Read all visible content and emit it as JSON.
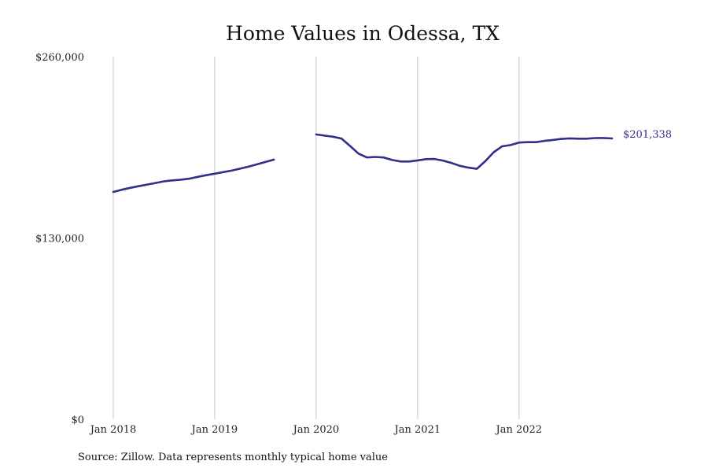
{
  "chart_data": {
    "type": "line",
    "title": "Home Values in Odessa, TX",
    "xlabel": "",
    "ylabel": "",
    "source": "Source: Zillow. Data represents monthly typical home value",
    "y_ticks": [
      "$0",
      "$130,000",
      "$260,000"
    ],
    "y_tick_values": [
      0,
      130000,
      260000
    ],
    "ylim": [
      0,
      260000
    ],
    "x_ticks": [
      "Jan 2018",
      "Jan 2019",
      "Jan 2020",
      "Jan 2021",
      "Jan 2022"
    ],
    "x_tick_dates": [
      "2018-01",
      "2019-01",
      "2020-01",
      "2021-01",
      "2022-01"
    ],
    "xlim": [
      "2018-01",
      "2022-12"
    ],
    "grid": "vertical lines at x ticks",
    "colors": {
      "line": "#302f8a",
      "grid": "#c8c8c8"
    },
    "series": [
      {
        "segments": [
          {
            "dates": [
              "2018-01",
              "2018-02",
              "2018-03",
              "2018-04",
              "2018-05",
              "2018-06",
              "2018-07",
              "2018-08",
              "2018-09",
              "2018-10",
              "2018-11",
              "2018-12",
              "2019-01",
              "2019-02",
              "2019-03",
              "2019-04",
              "2019-05",
              "2019-06",
              "2019-07",
              "2019-08"
            ],
            "values": [
              163000,
              164600,
              165900,
              167100,
              168300,
              169400,
              170600,
              171300,
              171800,
              172500,
              173800,
              175000,
              176100,
              177200,
              178300,
              179700,
              181100,
              182800,
              184500,
              186200
            ]
          },
          {
            "dates": [
              "2020-01",
              "2020-02",
              "2020-03",
              "2020-04",
              "2020-05",
              "2020-06",
              "2020-07",
              "2020-08",
              "2020-09",
              "2020-10",
              "2020-11",
              "2020-12",
              "2021-01",
              "2021-02",
              "2021-03",
              "2021-04",
              "2021-05",
              "2021-06",
              "2021-07",
              "2021-08",
              "2021-09",
              "2021-10",
              "2021-11",
              "2021-12",
              "2022-01",
              "2022-02",
              "2022-03",
              "2022-04",
              "2022-05",
              "2022-06",
              "2022-07",
              "2022-08",
              "2022-09",
              "2022-10",
              "2022-11",
              "2022-12"
            ],
            "values": [
              204200,
              203400,
              202600,
              201300,
              196000,
              190500,
              187700,
              188100,
              187700,
              185900,
              184800,
              184800,
              185600,
              186500,
              186600,
              185500,
              183800,
              181700,
              180400,
              179600,
              185000,
              191500,
              195700,
              196600,
              198400,
              198700,
              198700,
              199600,
              200300,
              201000,
              201400,
              201200,
              201200,
              201600,
              201700,
              201338
            ]
          }
        ]
      }
    ],
    "end_label": "$201,338"
  }
}
